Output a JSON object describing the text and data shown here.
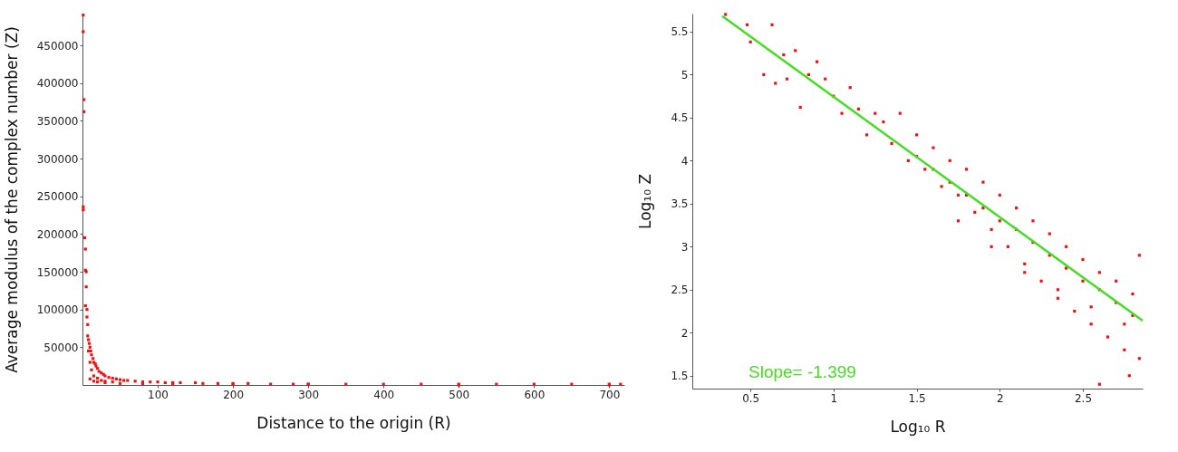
{
  "chart_data": [
    {
      "type": "scatter",
      "xlabel": "Distance to the origin (R)",
      "ylabel": "Average modulus of the complex number (Z)",
      "xlim": [
        0,
        720
      ],
      "ylim": [
        0,
        492000
      ],
      "xticks": [
        100,
        200,
        300,
        400,
        500,
        600,
        700
      ],
      "yticks": [
        50000,
        100000,
        150000,
        200000,
        250000,
        300000,
        350000,
        400000,
        450000
      ],
      "grid": false,
      "series": [
        {
          "color": "#ee1111",
          "marker": "square",
          "x": [
            1,
            1,
            2,
            2,
            1,
            1,
            3,
            4,
            4,
            5,
            5,
            4,
            6,
            6,
            7,
            7,
            8,
            8,
            9,
            10,
            10,
            11,
            12,
            12,
            14,
            15,
            15,
            17,
            18,
            20,
            20,
            22,
            25,
            25,
            28,
            30,
            30,
            35,
            40,
            40,
            45,
            50,
            55,
            60,
            70,
            80,
            90,
            100,
            110,
            120,
            130,
            150,
            160,
            180,
            200,
            220,
            250,
            280,
            300,
            350,
            400,
            450,
            500,
            550,
            600,
            650,
            700,
            715,
            10,
            15,
            20,
            30,
            50,
            80,
            120,
            200,
            300,
            500,
            700
          ],
          "values": [
            490000,
            468000,
            378000,
            362000,
            236000,
            232000,
            195000,
            180000,
            152000,
            150000,
            130000,
            105000,
            100000,
            90000,
            80000,
            65000,
            60000,
            45000,
            55000,
            50000,
            30000,
            45000,
            40000,
            20000,
            35000,
            30000,
            12000,
            28000,
            25000,
            22000,
            9000,
            18000,
            16000,
            6000,
            14000,
            12000,
            5000,
            10000,
            9000,
            4000,
            8000,
            7000,
            6000,
            6000,
            5000,
            4000,
            4000,
            4000,
            3000,
            3000,
            3000,
            3000,
            2000,
            2000,
            2000,
            2000,
            1000,
            1000,
            1000,
            1000,
            1000,
            1000,
            1000,
            1000,
            1000,
            1000,
            1000,
            1000,
            8000,
            5000,
            4000,
            3000,
            2000,
            1000,
            1000,
            1000,
            1000,
            0,
            0
          ]
        }
      ]
    },
    {
      "type": "scatter",
      "xlabel": "Log₁₀ R",
      "ylabel": "Log₁₀ Z",
      "xlim": [
        0.15,
        2.86
      ],
      "ylim": [
        1.35,
        5.71
      ],
      "xticks": [
        0.5,
        1,
        1.5,
        2,
        2.5
      ],
      "yticks": [
        1.5,
        2,
        2.5,
        3,
        3.5,
        4,
        4.5,
        5,
        5.5
      ],
      "grid": false,
      "annotations": [
        "Slope=    -1.399"
      ],
      "series": [
        {
          "color": "#ee1111",
          "marker": "square",
          "x": [
            0.35,
            0.48,
            0.5,
            0.58,
            0.63,
            0.65,
            0.7,
            0.72,
            0.77,
            0.8,
            0.85,
            0.9,
            0.95,
            1.0,
            1.05,
            1.1,
            1.15,
            1.2,
            1.25,
            1.3,
            1.35,
            1.4,
            1.45,
            1.5,
            1.55,
            1.6,
            1.65,
            1.7,
            1.75,
            1.8,
            1.85,
            1.9,
            1.95,
            2.0,
            2.05,
            2.1,
            2.15,
            2.2,
            2.25,
            2.3,
            2.35,
            2.4,
            2.45,
            2.5,
            2.55,
            2.6,
            2.65,
            2.7,
            2.75,
            2.8,
            2.84,
            2.84,
            1.5,
            1.6,
            1.7,
            1.8,
            1.9,
            2.0,
            2.1,
            2.2,
            2.3,
            2.4,
            2.5,
            2.6,
            2.7,
            2.8,
            1.75,
            1.95,
            2.15,
            2.35,
            2.55,
            2.75,
            2.6,
            2.78
          ],
          "values": [
            5.7,
            5.58,
            5.38,
            5.0,
            5.58,
            4.9,
            5.23,
            4.95,
            5.28,
            4.62,
            5.0,
            5.15,
            4.95,
            4.75,
            4.55,
            4.85,
            4.6,
            4.3,
            4.55,
            4.45,
            4.2,
            4.55,
            4.0,
            4.3,
            3.9,
            4.15,
            3.7,
            4.0,
            3.6,
            3.9,
            3.4,
            3.75,
            3.2,
            3.6,
            3.0,
            3.45,
            2.8,
            3.3,
            2.6,
            3.15,
            2.4,
            3.0,
            2.25,
            2.85,
            2.1,
            2.7,
            1.95,
            2.6,
            1.8,
            2.45,
            1.7,
            2.9,
            4.05,
            3.9,
            3.75,
            3.6,
            3.45,
            3.3,
            3.2,
            3.05,
            2.9,
            2.75,
            2.6,
            2.5,
            2.35,
            2.2,
            3.3,
            3.0,
            2.7,
            2.5,
            2.3,
            2.1,
            1.4,
            1.5
          ]
        },
        {
          "type": "line",
          "color": "#44dd22",
          "x": [
            0.33,
            2.86
          ],
          "values": [
            5.68,
            2.14
          ]
        }
      ]
    }
  ]
}
